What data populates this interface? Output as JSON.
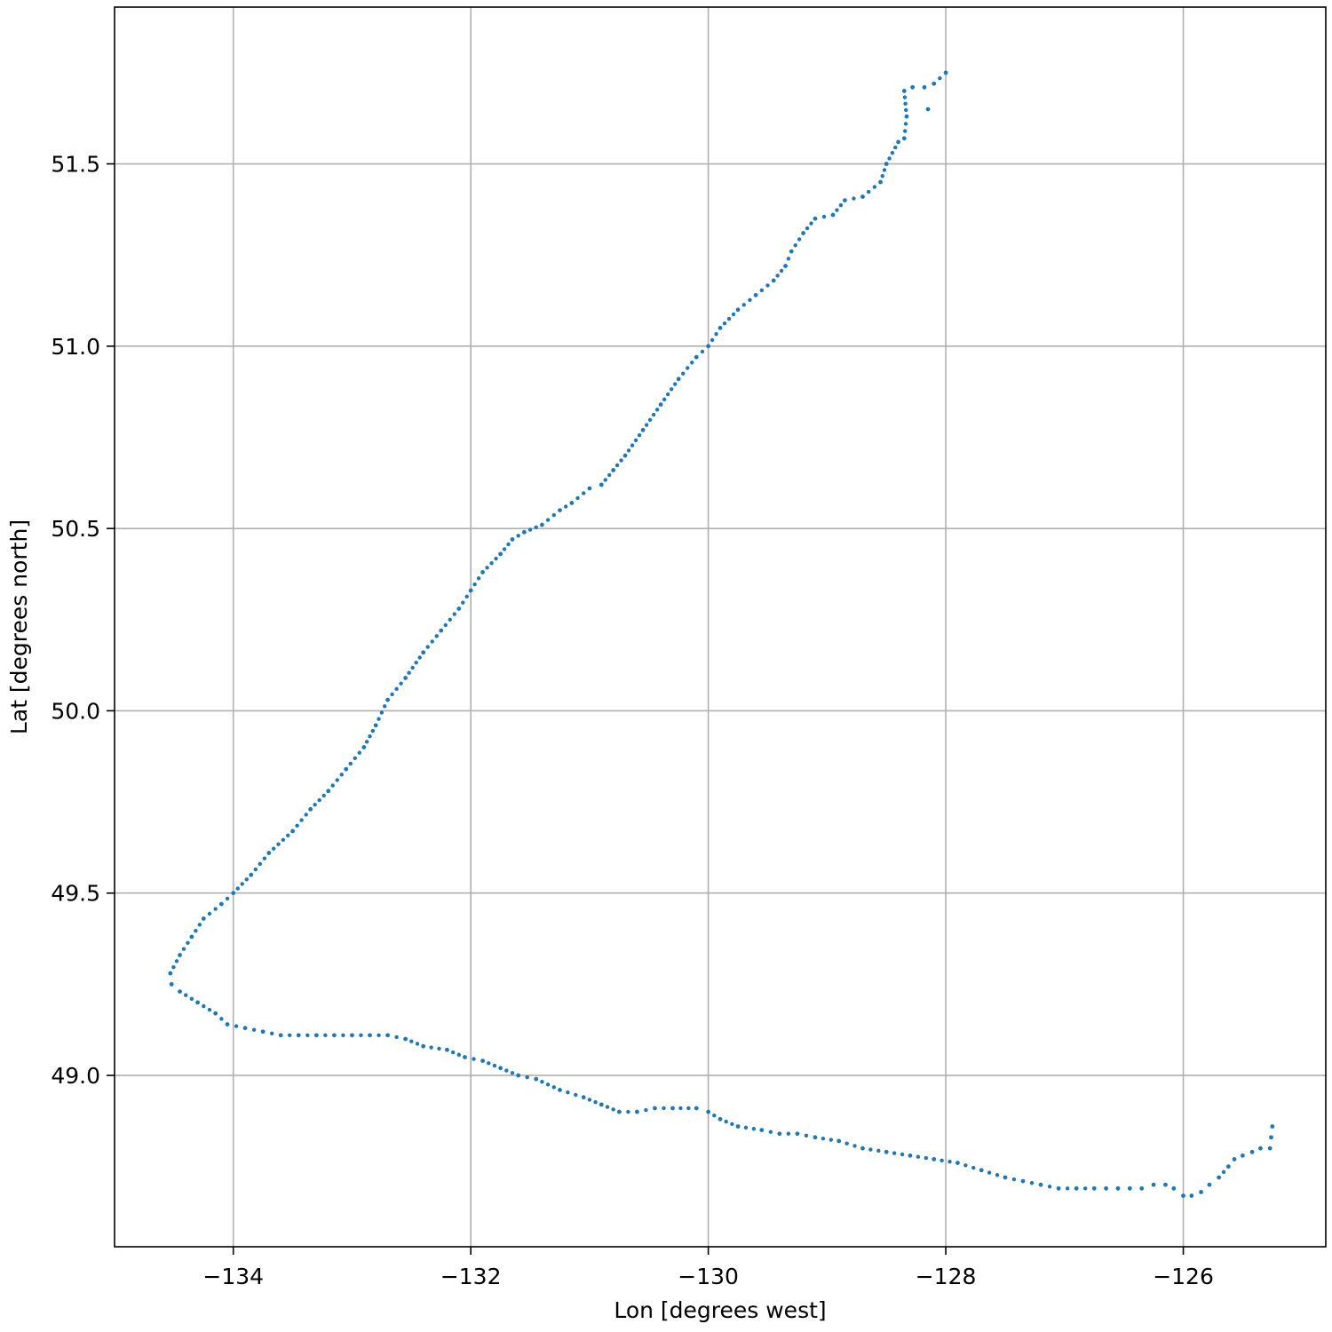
{
  "chart_data": {
    "type": "scatter",
    "title": "",
    "xlabel": "Lon [degrees west]",
    "ylabel": "Lat [degrees north]",
    "xlim": [
      -135.0,
      -124.8
    ],
    "ylim": [
      48.53,
      51.93
    ],
    "xticks": [
      -134,
      -132,
      -130,
      -128,
      -126
    ],
    "xtick_labels": [
      "−134",
      "−132",
      "−130",
      "−128",
      "−126"
    ],
    "yticks": [
      49.0,
      49.5,
      50.0,
      50.5,
      51.0,
      51.5
    ],
    "ytick_labels": [
      "49.0",
      "49.5",
      "50.0",
      "50.5",
      "51.0",
      "51.5"
    ],
    "grid": true,
    "legend": "none",
    "series": [
      {
        "color": "#1f77b4",
        "points": [
          [
            -125.25,
            48.86
          ],
          [
            -125.26,
            48.83
          ],
          [
            -125.27,
            48.8
          ],
          [
            -125.35,
            48.8
          ],
          [
            -125.42,
            48.79
          ],
          [
            -125.5,
            48.78
          ],
          [
            -125.57,
            48.77
          ],
          [
            -125.62,
            48.75
          ],
          [
            -125.7,
            48.72
          ],
          [
            -125.78,
            48.7
          ],
          [
            -125.85,
            48.68
          ],
          [
            -125.93,
            48.67
          ],
          [
            -126.0,
            48.67
          ],
          [
            -126.08,
            48.69
          ],
          [
            -126.15,
            48.7
          ],
          [
            -126.25,
            48.7
          ],
          [
            -126.35,
            48.69
          ],
          [
            -126.45,
            48.69
          ],
          [
            -126.55,
            48.69
          ],
          [
            -126.65,
            48.69
          ],
          [
            -126.75,
            48.69
          ],
          [
            -126.9,
            48.69
          ],
          [
            -127.05,
            48.69
          ],
          [
            -127.2,
            48.7
          ],
          [
            -127.35,
            48.71
          ],
          [
            -127.5,
            48.72
          ],
          [
            -127.7,
            48.74
          ],
          [
            -127.9,
            48.76
          ],
          [
            -128.1,
            48.77
          ],
          [
            -128.3,
            48.78
          ],
          [
            -128.5,
            48.79
          ],
          [
            -128.7,
            48.8
          ],
          [
            -128.9,
            48.82
          ],
          [
            -129.1,
            48.83
          ],
          [
            -129.25,
            48.84
          ],
          [
            -129.4,
            48.84
          ],
          [
            -129.55,
            48.85
          ],
          [
            -129.75,
            48.86
          ],
          [
            -129.9,
            48.88
          ],
          [
            -130.0,
            48.9
          ],
          [
            -130.1,
            48.91
          ],
          [
            -130.3,
            48.91
          ],
          [
            -130.45,
            48.91
          ],
          [
            -130.6,
            48.9
          ],
          [
            -130.75,
            48.9
          ],
          [
            -130.9,
            48.92
          ],
          [
            -131.05,
            48.94
          ],
          [
            -131.25,
            48.96
          ],
          [
            -131.45,
            48.99
          ],
          [
            -131.6,
            49.0
          ],
          [
            -131.75,
            49.02
          ],
          [
            -131.9,
            49.04
          ],
          [
            -132.05,
            49.05
          ],
          [
            -132.2,
            49.07
          ],
          [
            -132.4,
            49.08
          ],
          [
            -132.55,
            49.1
          ],
          [
            -132.7,
            49.11
          ],
          [
            -132.85,
            49.11
          ],
          [
            -133.0,
            49.11
          ],
          [
            -133.15,
            49.11
          ],
          [
            -133.3,
            49.11
          ],
          [
            -133.45,
            49.11
          ],
          [
            -133.6,
            49.11
          ],
          [
            -133.75,
            49.12
          ],
          [
            -133.9,
            49.13
          ],
          [
            -134.05,
            49.14
          ],
          [
            -134.15,
            49.17
          ],
          [
            -134.3,
            49.2
          ],
          [
            -134.45,
            49.23
          ],
          [
            -134.52,
            49.25
          ],
          [
            -134.53,
            49.28
          ],
          [
            -134.45,
            49.33
          ],
          [
            -134.35,
            49.38
          ],
          [
            -134.25,
            49.43
          ],
          [
            -134.1,
            49.47
          ],
          [
            -134.0,
            49.5
          ],
          [
            -133.85,
            49.55
          ],
          [
            -133.7,
            49.61
          ],
          [
            -133.5,
            49.67
          ],
          [
            -133.35,
            49.73
          ],
          [
            -133.2,
            49.78
          ],
          [
            -133.05,
            49.84
          ],
          [
            -132.9,
            49.9
          ],
          [
            -132.8,
            49.96
          ],
          [
            -132.7,
            50.03
          ],
          [
            -132.55,
            50.09
          ],
          [
            -132.4,
            50.16
          ],
          [
            -132.25,
            50.22
          ],
          [
            -132.1,
            50.28
          ],
          [
            -132.0,
            50.33
          ],
          [
            -131.9,
            50.38
          ],
          [
            -131.75,
            50.43
          ],
          [
            -131.65,
            50.47
          ],
          [
            -131.55,
            50.49
          ],
          [
            -131.4,
            50.51
          ],
          [
            -131.25,
            50.55
          ],
          [
            -131.15,
            50.57
          ],
          [
            -131.0,
            50.61
          ],
          [
            -130.9,
            50.62
          ],
          [
            -130.8,
            50.66
          ],
          [
            -130.7,
            50.7
          ],
          [
            -130.55,
            50.77
          ],
          [
            -130.4,
            50.84
          ],
          [
            -130.25,
            50.91
          ],
          [
            -130.1,
            50.97
          ],
          [
            -130.0,
            51.0
          ],
          [
            -129.9,
            51.05
          ],
          [
            -129.75,
            51.1
          ],
          [
            -129.6,
            51.14
          ],
          [
            -129.45,
            51.18
          ],
          [
            -129.35,
            51.22
          ],
          [
            -129.3,
            51.26
          ],
          [
            -129.2,
            51.31
          ],
          [
            -129.1,
            51.35
          ],
          [
            -128.95,
            51.36
          ],
          [
            -128.85,
            51.4
          ],
          [
            -128.7,
            51.41
          ],
          [
            -128.55,
            51.45
          ],
          [
            -128.5,
            51.5
          ],
          [
            -128.4,
            51.56
          ],
          [
            -128.35,
            51.57
          ],
          [
            -128.33,
            51.63
          ],
          [
            -128.35,
            51.7
          ],
          [
            -128.28,
            51.71
          ],
          [
            -128.18,
            51.71
          ],
          [
            -128.1,
            51.72
          ],
          [
            -128.0,
            51.75
          ],
          [
            -128.15,
            51.65
          ]
        ]
      }
    ]
  }
}
